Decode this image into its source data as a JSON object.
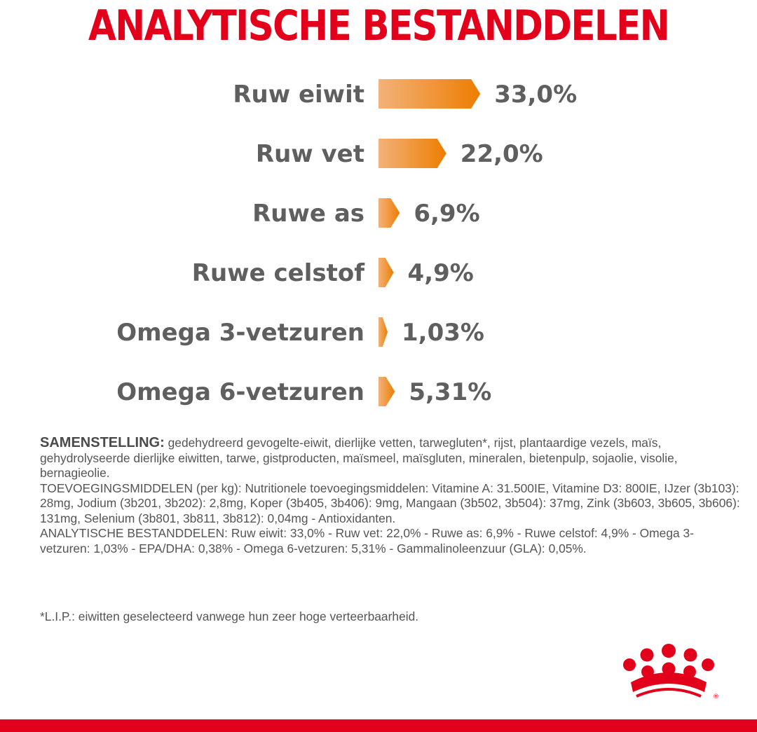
{
  "header": {
    "title": "ANALYTISCHE BESTANDDELEN"
  },
  "colors": {
    "title_red": "#e2001a",
    "bar_start": "#f2b27a",
    "bar_end": "#ee7d00",
    "label_grey": "#5f5f5f"
  },
  "chart_data": {
    "type": "bar",
    "orientation": "horizontal",
    "categories": [
      "Ruw eiwit",
      "Ruw vet",
      "Ruwe as",
      "Ruwe celstof",
      "Omega 3-vetzuren",
      "Omega 6-vetzuren"
    ],
    "values": [
      33.0,
      22.0,
      6.9,
      4.9,
      1.03,
      5.31
    ],
    "value_labels": [
      "33,0%",
      "22,0%",
      "6,9%",
      "4,9%",
      "1,03%",
      "5,31%"
    ],
    "unit": "%",
    "grid": false,
    "legend": "none"
  },
  "composition": {
    "heading": "SAMENSTELLING:",
    "ingredients": " gedehydreerd gevogelte-eiwit, dierlijke vetten, tarwegluten*, rijst, plantaardige vezels, maïs, gehydrolyseerde dierlijke eiwitten, tarwe, gistproducten, maïsmeel, maïsgluten, mineralen, bietenpulp, sojaolie, visolie, bernagieolie.",
    "additives": "TOEVOEGINGSMIDDELEN (per kg): Nutritionele toevoegingsmiddelen: Vitamine A: 31.500IE, Vitamine D3: 800IE, IJzer (3b103): 28mg, Jodium (3b201, 3b202): 2,8mg, Koper (3b405, 3b406): 9mg, Mangaan (3b502, 3b504): 37mg, Zink (3b603, 3b605, 3b606): 131mg, Selenium (3b801, 3b811, 3b812): 0,04mg - Antioxidanten.",
    "analysis": "ANALYTISCHE BESTANDDELEN: Ruw eiwit: 33,0% - Ruw vet: 22,0% - Ruwe as: 6,9% - Ruwe celstof: 4,9% - Omega 3-vetzuren: 1,03% - EPA/DHA: 0,38% - Omega 6-vetzuren: 5,31% - Gammalinoleenzuur (GLA): 0,05%."
  },
  "footnote": "*L.I.P.: eiwitten geselecteerd vanwege hun zeer hoge verteerbaarheid.",
  "brand": {
    "logo_icon": "crown-icon"
  }
}
